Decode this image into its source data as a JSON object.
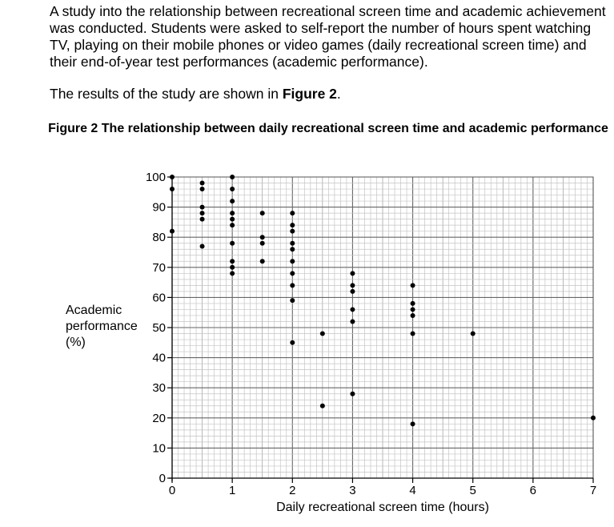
{
  "intro": {
    "paragraph": "A study into the relationship between recreational screen time and academic achievement was conducted.  Students were asked to self-report the number of hours spent watching TV, playing on their mobile phones or video games (daily recreational screen time) and their end-of-year test performances (academic performance).",
    "results_prefix": "The results of the study are shown in ",
    "results_figure": "Figure 2",
    "results_suffix": "."
  },
  "chart_data": {
    "type": "scatter",
    "title": "Figure 2 The relationship between daily recreational screen time and academic performance",
    "xlabel": "Daily recreational screen time (hours)",
    "ylabel_lines": [
      "Academic",
      "performance",
      "(%)"
    ],
    "xlim": [
      0,
      7
    ],
    "ylim": [
      0,
      100
    ],
    "xticks": [
      0,
      1,
      2,
      3,
      4,
      5,
      6,
      7
    ],
    "yticks": [
      0,
      10,
      20,
      30,
      40,
      50,
      60,
      70,
      80,
      90,
      100
    ],
    "grid": true,
    "points": [
      {
        "x": 0,
        "y": 100
      },
      {
        "x": 0,
        "y": 96
      },
      {
        "x": 0,
        "y": 82
      },
      {
        "x": 0.5,
        "y": 98
      },
      {
        "x": 0.5,
        "y": 96
      },
      {
        "x": 0.5,
        "y": 90
      },
      {
        "x": 0.5,
        "y": 88
      },
      {
        "x": 0.5,
        "y": 86
      },
      {
        "x": 0.5,
        "y": 77
      },
      {
        "x": 1,
        "y": 100
      },
      {
        "x": 1,
        "y": 96
      },
      {
        "x": 1,
        "y": 92
      },
      {
        "x": 1,
        "y": 88
      },
      {
        "x": 1,
        "y": 86
      },
      {
        "x": 1,
        "y": 84
      },
      {
        "x": 1,
        "y": 78
      },
      {
        "x": 1,
        "y": 72
      },
      {
        "x": 1,
        "y": 70
      },
      {
        "x": 1,
        "y": 68
      },
      {
        "x": 1.5,
        "y": 88
      },
      {
        "x": 1.5,
        "y": 80
      },
      {
        "x": 1.5,
        "y": 78
      },
      {
        "x": 1.5,
        "y": 72
      },
      {
        "x": 2,
        "y": 88
      },
      {
        "x": 2,
        "y": 84
      },
      {
        "x": 2,
        "y": 82
      },
      {
        "x": 2,
        "y": 78
      },
      {
        "x": 2,
        "y": 76
      },
      {
        "x": 2,
        "y": 72
      },
      {
        "x": 2,
        "y": 68
      },
      {
        "x": 2,
        "y": 64
      },
      {
        "x": 2,
        "y": 59
      },
      {
        "x": 2,
        "y": 45
      },
      {
        "x": 2.5,
        "y": 48
      },
      {
        "x": 2.5,
        "y": 24
      },
      {
        "x": 3,
        "y": 68
      },
      {
        "x": 3,
        "y": 64
      },
      {
        "x": 3,
        "y": 62
      },
      {
        "x": 3,
        "y": 56
      },
      {
        "x": 3,
        "y": 52
      },
      {
        "x": 3,
        "y": 28
      },
      {
        "x": 4,
        "y": 64
      },
      {
        "x": 4,
        "y": 58
      },
      {
        "x": 4,
        "y": 56
      },
      {
        "x": 4,
        "y": 54
      },
      {
        "x": 4,
        "y": 48
      },
      {
        "x": 4,
        "y": 18
      },
      {
        "x": 5,
        "y": 48
      },
      {
        "x": 7,
        "y": 20
      }
    ]
  }
}
